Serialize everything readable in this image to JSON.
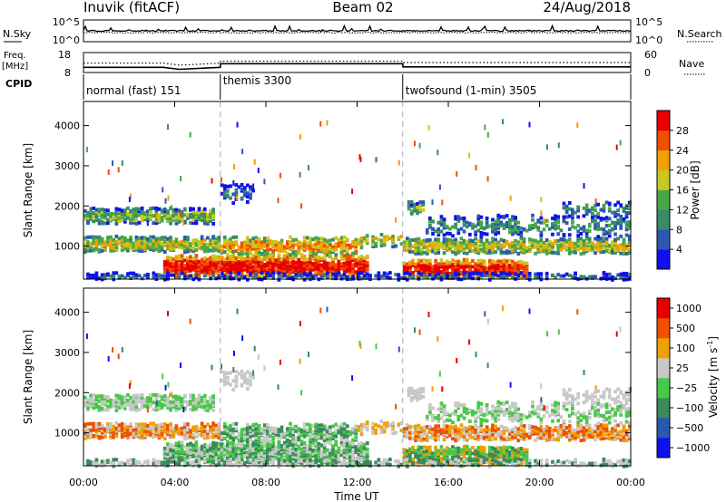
{
  "header": {
    "station": "Inuvik (fitACF)",
    "beam": "Beam 02",
    "date": "24/Aug/2018"
  },
  "left_labels": {
    "nsky": "N.Sky",
    "freq": "Freq.",
    "freq_unit": "[MHz]",
    "cpid": "CPID"
  },
  "right_labels": {
    "nsearch": "N.Search",
    "nave": "Nave"
  },
  "colors": {
    "power": [
      "#1010f0",
      "#2a5ab0",
      "#3a8a6a",
      "#48a848",
      "#c8c820",
      "#f0a000",
      "#f05000",
      "#e80000"
    ],
    "velocity": [
      "#e80000",
      "#f05000",
      "#f0a000",
      "#c8c8c8",
      "#48c848",
      "#3a8a5a",
      "#2a5ab0",
      "#1010f0"
    ]
  },
  "chart_data": [
    {
      "type": "line",
      "name": "noise",
      "ylabel_left": "N.Sky",
      "ylabel_right": "N.Search",
      "y_ticks_left": [
        "10^5",
        "10^0"
      ],
      "y_ticks_right": [
        "10^5",
        "10^0"
      ],
      "scale": "log"
    },
    {
      "type": "line",
      "name": "freq-nave",
      "ylabel_left": "Freq. [MHz]",
      "ylabel_right": "Nave",
      "y_ticks_left": [
        "18",
        "8"
      ],
      "y_ticks_right": [
        "60",
        "0"
      ],
      "freq_series": {
        "x": [
          0,
          3.5,
          4.2,
          6,
          6.01,
          14,
          14.01,
          24
        ],
        "y": [
          10.6,
          10.6,
          9.6,
          10.6,
          12.4,
          12.4,
          10.8,
          10.8
        ]
      },
      "nave_series": {
        "x": [
          0,
          3.5,
          4.2,
          6,
          6.01,
          14,
          14.01,
          24
        ],
        "y": [
          28,
          28,
          22,
          28,
          34,
          34,
          30,
          30
        ]
      }
    },
    {
      "type": "table",
      "name": "cpid",
      "segments": [
        {
          "start": 0,
          "end": 6,
          "label": "normal (fast) 151"
        },
        {
          "start": 6,
          "end": 14,
          "label": "themis 3300"
        },
        {
          "start": 14,
          "end": 24,
          "label": "twofsound (1-min) 3505"
        }
      ]
    },
    {
      "type": "heatmap",
      "name": "power",
      "ylabel": "Slant Range [km]",
      "y_ticks": [
        "1000",
        "2000",
        "3000",
        "4000"
      ],
      "y_tick_values": [
        1000,
        2000,
        3000,
        4000
      ],
      "ylim": [
        180,
        4600
      ],
      "xlim": [
        0,
        24
      ],
      "colorbar_label": "Power [dB]",
      "colorbar_ticks": [
        "4",
        "8",
        "12",
        "16",
        "20",
        "24",
        "28"
      ]
    },
    {
      "type": "heatmap",
      "name": "velocity",
      "ylabel": "Slant Range [km]",
      "xlabel": "Time UT",
      "x_ticks": [
        "00:00",
        "04:00",
        "08:00",
        "12:00",
        "16:00",
        "20:00",
        "00:00"
      ],
      "x_tick_values": [
        0,
        4,
        8,
        12,
        16,
        20,
        24
      ],
      "y_ticks": [
        "1000",
        "2000",
        "3000",
        "4000"
      ],
      "y_tick_values": [
        1000,
        2000,
        3000,
        4000
      ],
      "ylim": [
        180,
        4600
      ],
      "xlim": [
        0,
        24
      ],
      "colorbar_label": "Velocity",
      "colorbar_unit": "[m s",
      "colorbar_unit_exp": "-1",
      "colorbar_unit_tail": "]",
      "colorbar_ticks": [
        "1000",
        "500",
        "100",
        "25",
        "−25",
        "−100",
        "−500",
        "−1000"
      ]
    }
  ]
}
